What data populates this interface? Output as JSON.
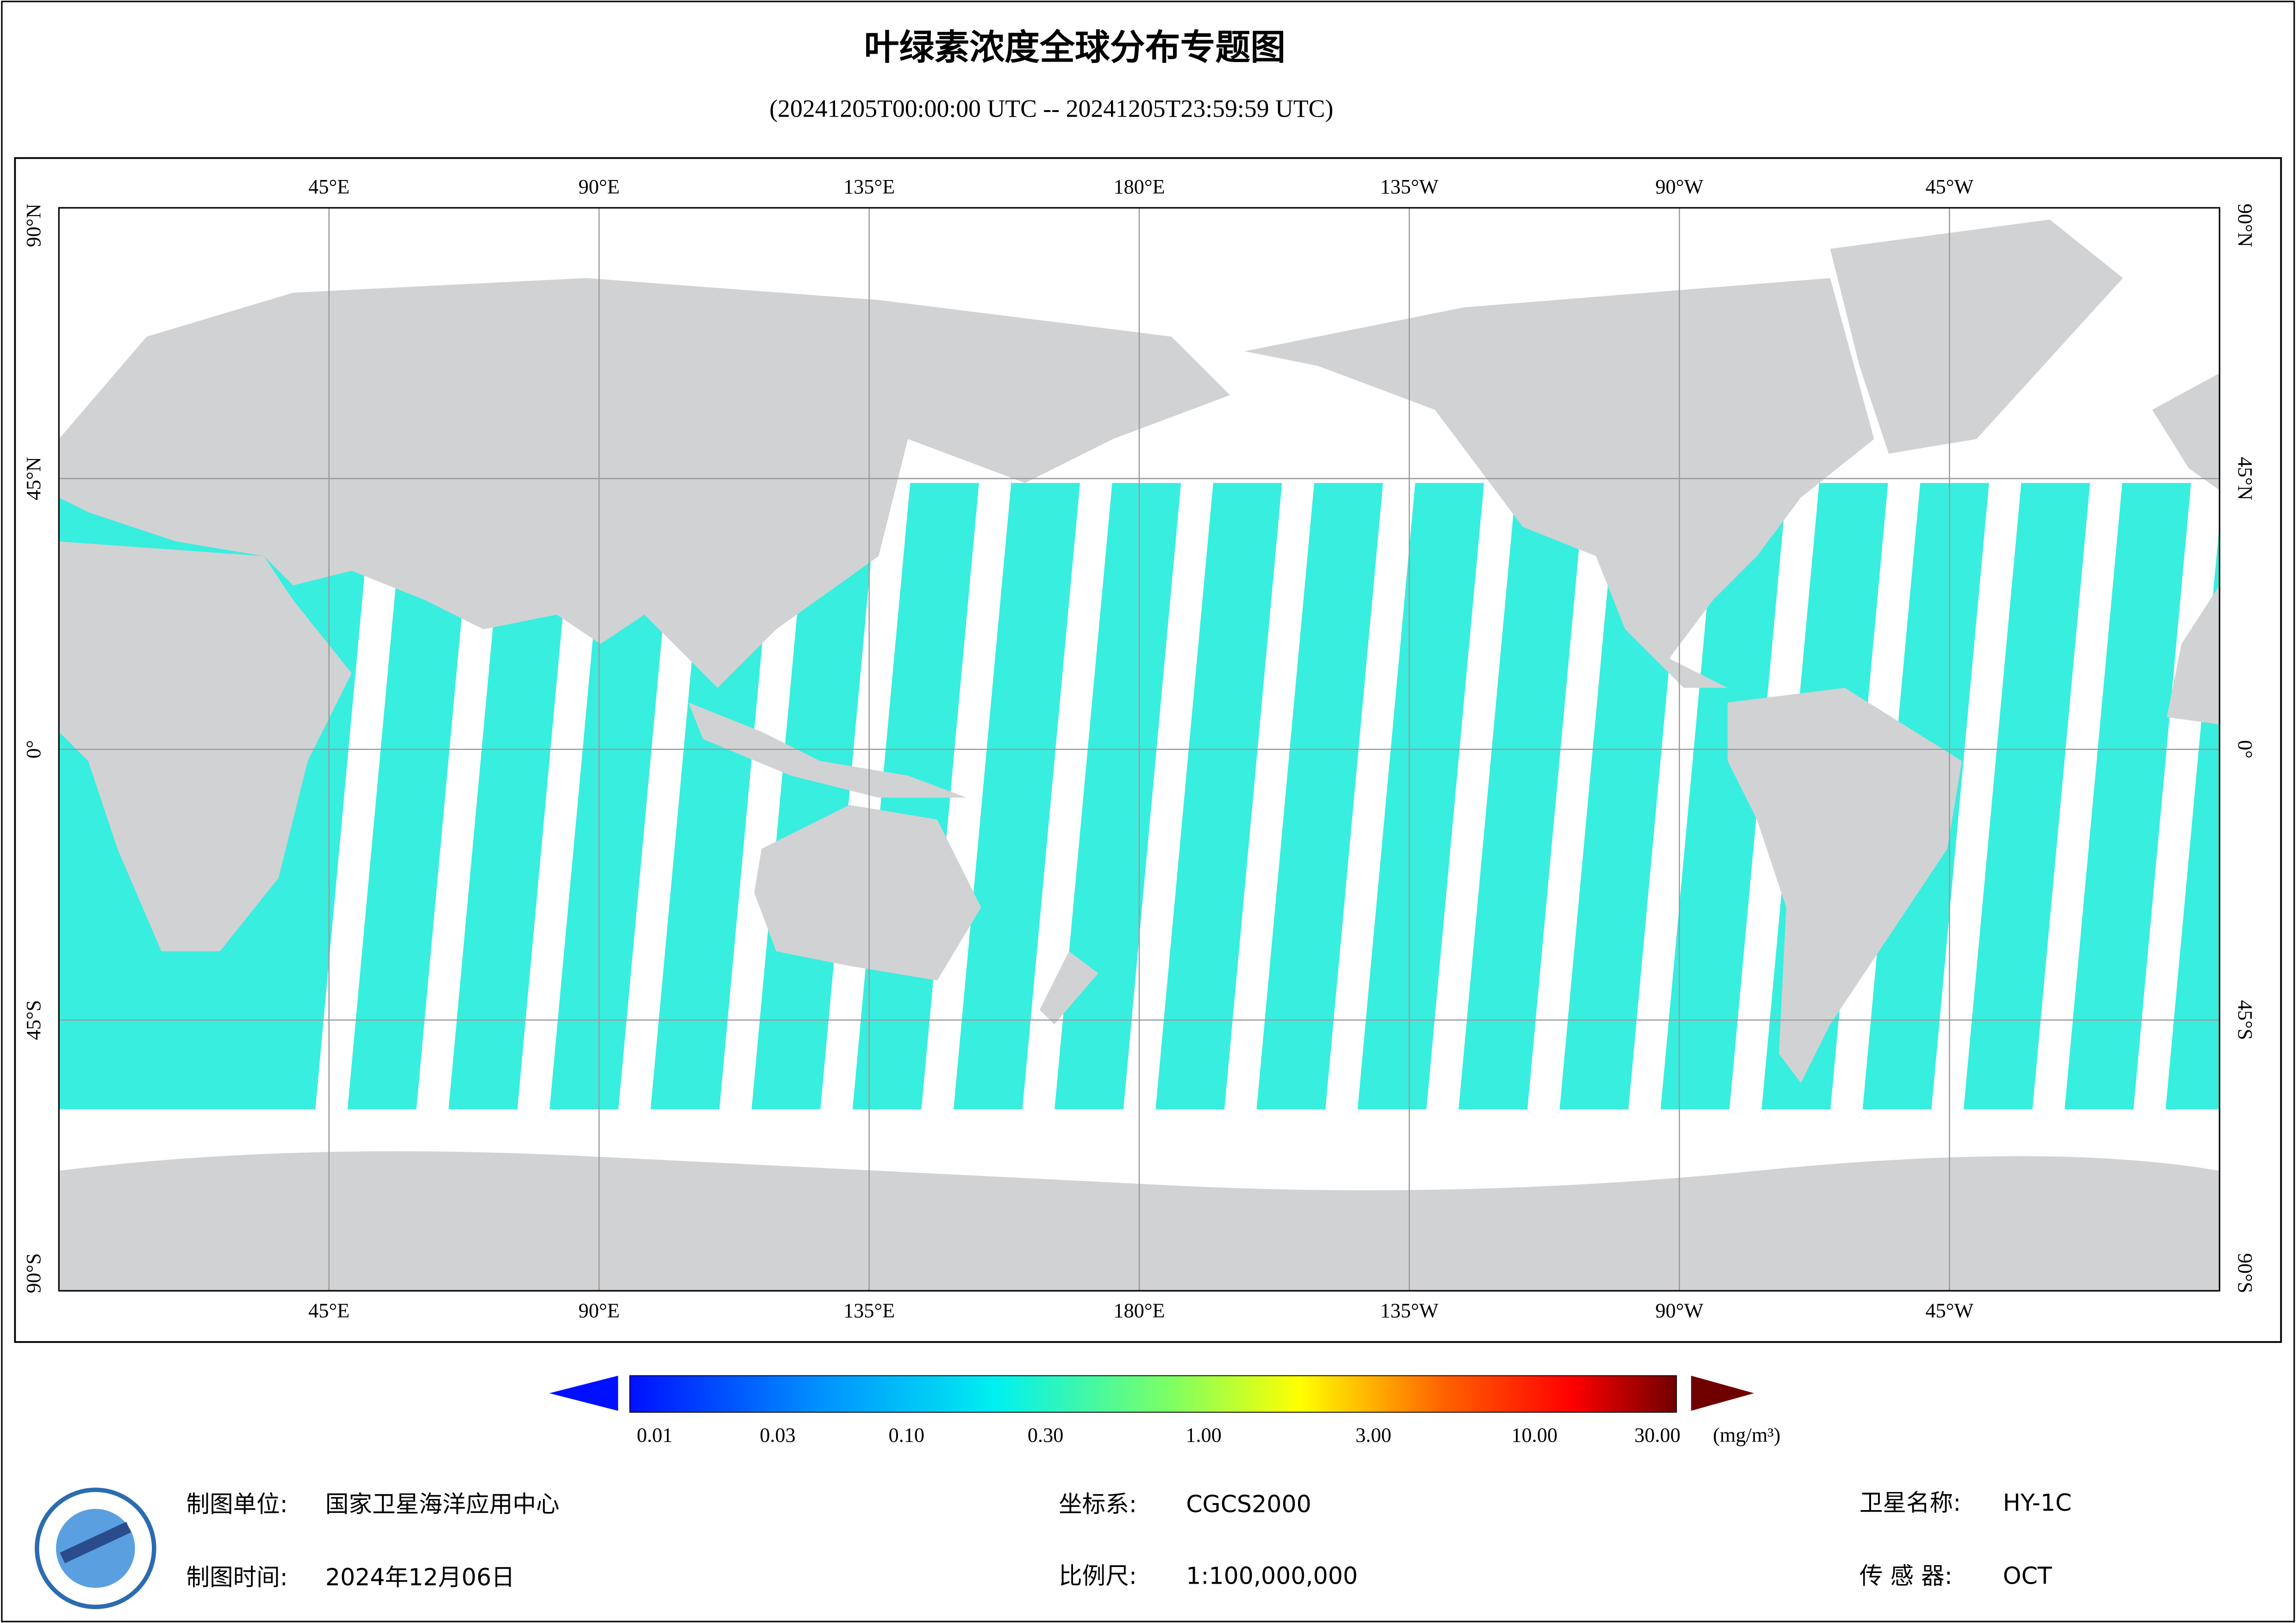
{
  "header": {
    "title": "叶绿素浓度全球分布专题图",
    "subtitle": "(20241205T00:00:00 UTC -- 20241205T23:59:59 UTC)"
  },
  "map": {
    "lon_labels": [
      "45°E",
      "90°E",
      "135°E",
      "180°E",
      "135°W",
      "90°W",
      "45°W"
    ],
    "lat_labels": [
      "90°N",
      "45°N",
      "0°",
      "45°S",
      "90°S"
    ]
  },
  "colorbar": {
    "ticks": [
      "0.01",
      "0.03",
      "0.10",
      "0.30",
      "1.00",
      "3.00",
      "10.00",
      "30.00"
    ],
    "unit": "(mg/m³)"
  },
  "footer": {
    "unit_label": "制图单位:",
    "unit_value": "国家卫星海洋应用中心",
    "time_label": "制图时间:",
    "time_value": "2024年12月06日",
    "crs_label": "坐标系:",
    "crs_value": "CGCS2000",
    "scale_label": "比例尺:",
    "scale_value": "1:100,000,000",
    "satellite_label": "卫星名称:",
    "satellite_value": "HY-1C",
    "sensor_label": "传 感 器:",
    "sensor_value": "OCT"
  }
}
